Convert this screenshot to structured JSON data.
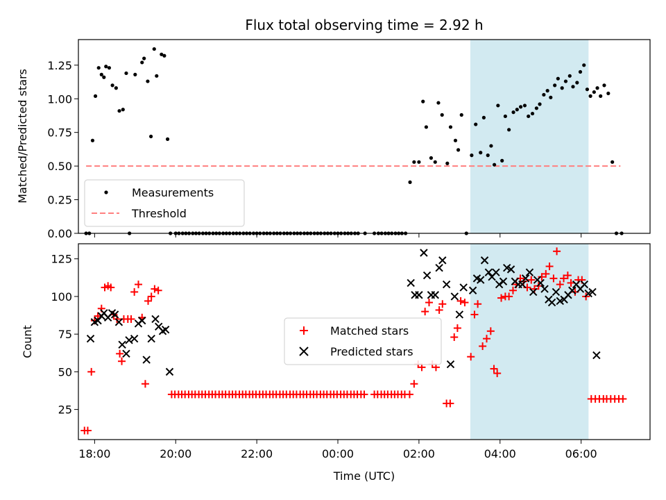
{
  "colors": {
    "measurement": "#000000",
    "threshold": "#ff7f7f",
    "matched": "#ff0000",
    "predicted": "#000000",
    "highlight": "#add8e6"
  },
  "chart_data": [
    {
      "type": "scatter",
      "title": "Flux total observing time = 2.92 h",
      "xlabel": "",
      "ylabel": "Matched/Predicted stars",
      "x_unit": "hours (UTC, 17:00 = 17, past midnight > 24)",
      "xlim": [
        "17:36",
        "07:42"
      ],
      "ylim": [
        0,
        1.44
      ],
      "yticks": [
        "0.00",
        "0.25",
        "0.50",
        "0.75",
        "1.00",
        "1.25"
      ],
      "xticks": [
        "18:00",
        "20:00",
        "22:00",
        "00:00",
        "02:00",
        "04:00",
        "06:00"
      ],
      "shaded_region": [
        "03:16",
        "06:11"
      ],
      "legend_location": "lower left",
      "series": [
        {
          "name": "Measurements",
          "marker": "dot",
          "x": [
            17.79,
            17.87,
            17.95,
            18.02,
            18.1,
            18.17,
            18.23,
            18.28,
            18.36,
            18.44,
            18.53,
            18.61,
            18.7,
            18.78,
            18.86,
            19.0,
            19.17,
            19.22,
            19.31,
            19.39,
            19.47,
            19.53,
            19.65,
            19.72,
            19.8,
            19.87,
            20.0,
            20.08,
            20.17,
            20.25,
            20.33,
            20.42,
            20.5,
            20.58,
            20.67,
            20.75,
            20.83,
            20.92,
            21.0,
            21.08,
            21.17,
            21.25,
            21.33,
            21.42,
            21.5,
            21.58,
            21.67,
            21.75,
            21.83,
            21.92,
            22.0,
            22.08,
            22.17,
            22.25,
            22.33,
            22.42,
            22.5,
            22.58,
            22.67,
            22.75,
            22.83,
            22.92,
            23.0,
            23.08,
            23.17,
            23.25,
            23.33,
            23.42,
            23.5,
            23.58,
            23.67,
            23.75,
            23.83,
            23.92,
            24.0,
            24.08,
            24.17,
            24.25,
            24.33,
            24.42,
            24.5,
            24.67,
            24.9,
            25.0,
            25.08,
            25.17,
            25.25,
            25.33,
            25.42,
            25.5,
            25.58,
            25.67,
            25.78,
            25.88,
            26.0,
            26.1,
            26.18,
            26.3,
            26.4,
            26.48,
            26.57,
            26.7,
            26.78,
            26.9,
            26.97,
            27.05,
            27.17,
            27.3,
            27.4,
            27.52,
            27.6,
            27.7,
            27.78,
            27.86,
            27.95,
            28.05,
            28.13,
            28.22,
            28.33,
            28.42,
            28.51,
            28.61,
            28.7,
            28.8,
            28.9,
            28.98,
            29.08,
            29.17,
            29.25,
            29.35,
            29.43,
            29.53,
            29.62,
            29.72,
            29.8,
            29.9,
            29.98,
            30.07,
            30.15,
            30.23,
            30.32,
            30.4,
            30.48,
            30.57,
            30.67,
            30.77,
            30.87,
            31.0
          ],
          "y": [
            0,
            0,
            0.69,
            1.02,
            1.23,
            1.18,
            1.16,
            1.24,
            1.23,
            1.1,
            1.08,
            0.91,
            0.92,
            1.19,
            0,
            1.18,
            1.27,
            1.3,
            1.13,
            0.72,
            1.37,
            1.17,
            1.33,
            1.32,
            0.7,
            0,
            0,
            0,
            0,
            0,
            0,
            0,
            0,
            0,
            0,
            0,
            0,
            0,
            0,
            0,
            0,
            0,
            0,
            0,
            0,
            0,
            0,
            0,
            0,
            0,
            0,
            0,
            0,
            0,
            0,
            0,
            0,
            0,
            0,
            0,
            0,
            0,
            0,
            0,
            0,
            0,
            0,
            0,
            0,
            0,
            0,
            0,
            0,
            0,
            0,
            0,
            0,
            0,
            0,
            0,
            0,
            0,
            0,
            0,
            0,
            0,
            0,
            0,
            0,
            0,
            0,
            0,
            0.38,
            0.53,
            0.53,
            0.98,
            0.79,
            0.56,
            0.53,
            0.97,
            0.88,
            0.52,
            0.79,
            0.69,
            0.62,
            0.88,
            0,
            0.58,
            0.81,
            0.6,
            0.86,
            0.58,
            0.65,
            0.51,
            0.95,
            0.54,
            0.87,
            0.77,
            0.9,
            0.92,
            0.94,
            0.95,
            0.87,
            0.89,
            0.93,
            0.96,
            1.03,
            1.06,
            1.01,
            1.1,
            1.15,
            1.08,
            1.13,
            1.17,
            1.09,
            1.12,
            1.2,
            1.25,
            1.07,
            1.02,
            1.05,
            1.08,
            1.02,
            1.1,
            1.04,
            0.53,
            0,
            0
          ]
        },
        {
          "name": "Threshold",
          "style": "dashed",
          "x": [
            17.79,
            30.97
          ],
          "y": [
            0.5,
            0.5
          ]
        }
      ]
    },
    {
      "type": "scatter",
      "title": "",
      "xlabel": "Time (UTC)",
      "ylabel": "Count",
      "xlim": [
        "17:36",
        "07:42"
      ],
      "ylim": [
        5,
        135
      ],
      "yticks": [
        "25",
        "50",
        "75",
        "100",
        "125"
      ],
      "xticks": [
        "18:00",
        "20:00",
        "22:00",
        "00:00",
        "02:00",
        "04:00",
        "06:00"
      ],
      "shaded_region": [
        "03:16",
        "06:11"
      ],
      "legend_location": "center",
      "series": [
        {
          "name": "Matched stars",
          "marker": "plus",
          "x": [
            17.75,
            17.83,
            17.92,
            18.0,
            18.08,
            18.17,
            18.25,
            18.33,
            18.4,
            18.47,
            18.55,
            18.62,
            18.67,
            18.72,
            18.82,
            18.9,
            18.98,
            19.08,
            19.17,
            19.25,
            19.32,
            19.4,
            19.48,
            19.57,
            19.65,
            19.73,
            19.81,
            19.9,
            19.98,
            20.07,
            20.15,
            20.23,
            20.32,
            20.4,
            20.48,
            20.57,
            20.65,
            20.73,
            20.82,
            20.9,
            20.98,
            21.07,
            21.15,
            21.23,
            21.32,
            21.4,
            21.48,
            21.57,
            21.65,
            21.73,
            21.82,
            21.9,
            21.98,
            22.07,
            22.15,
            22.23,
            22.32,
            22.4,
            22.48,
            22.57,
            22.65,
            22.73,
            22.82,
            22.9,
            22.98,
            23.07,
            23.15,
            23.23,
            23.32,
            23.4,
            23.48,
            23.57,
            23.65,
            23.73,
            23.82,
            23.9,
            23.98,
            24.07,
            24.15,
            24.23,
            24.32,
            24.4,
            24.48,
            24.57,
            24.65,
            24.9,
            24.98,
            25.07,
            25.15,
            25.23,
            25.32,
            25.4,
            25.48,
            25.57,
            25.65,
            25.77,
            25.88,
            25.98,
            26.07,
            26.15,
            26.25,
            26.33,
            26.42,
            26.5,
            26.58,
            26.68,
            26.77,
            26.87,
            26.95,
            27.03,
            27.13,
            27.28,
            27.37,
            27.45,
            27.57,
            27.67,
            27.77,
            27.85,
            27.93,
            28.03,
            28.13,
            28.22,
            28.32,
            28.4,
            28.5,
            28.58,
            28.67,
            28.77,
            28.85,
            28.95,
            29.03,
            29.13,
            29.22,
            29.32,
            29.4,
            29.48,
            29.57,
            29.67,
            29.75,
            29.85,
            29.93,
            30.02,
            30.12,
            30.25,
            30.35,
            30.45,
            30.55,
            30.63,
            30.73,
            30.83,
            30.93,
            31.03
          ],
          "y": [
            11,
            11,
            50,
            84,
            87,
            92,
            106,
            107,
            106,
            88,
            85,
            62,
            57,
            85,
            85,
            85,
            103,
            108,
            86,
            42,
            97,
            100,
            105,
            104,
            null,
            null,
            null,
            35,
            35,
            35,
            35,
            35,
            35,
            35,
            35,
            35,
            35,
            35,
            35,
            35,
            35,
            35,
            35,
            35,
            35,
            35,
            35,
            35,
            35,
            35,
            35,
            35,
            35,
            35,
            35,
            35,
            35,
            35,
            35,
            35,
            35,
            35,
            35,
            35,
            35,
            35,
            35,
            35,
            35,
            35,
            35,
            35,
            35,
            35,
            35,
            35,
            35,
            35,
            35,
            35,
            35,
            35,
            35,
            35,
            35,
            35,
            35,
            35,
            35,
            35,
            35,
            35,
            35,
            35,
            35,
            35,
            42,
            55,
            53,
            90,
            96,
            55,
            53,
            91,
            95,
            29,
            29,
            73,
            79,
            97,
            96,
            60,
            88,
            95,
            67,
            72,
            77,
            52,
            49,
            99,
            100,
            100,
            104,
            108,
            112,
            110,
            106,
            111,
            105,
            107,
            113,
            115,
            120,
            112,
            130,
            108,
            112,
            114,
            109,
            103,
            111,
            111,
            100,
            32,
            32,
            32,
            32,
            32,
            32,
            32,
            32,
            32
          ]
        },
        {
          "name": "Predicted stars",
          "marker": "x",
          "x": [
            17.9,
            18.0,
            18.08,
            18.17,
            18.23,
            18.33,
            18.43,
            18.5,
            18.6,
            18.68,
            18.78,
            18.85,
            18.98,
            19.08,
            19.17,
            19.28,
            19.4,
            19.5,
            19.58,
            19.68,
            19.75,
            19.85,
            25.8,
            25.9,
            26.0,
            26.12,
            26.2,
            26.3,
            26.4,
            26.5,
            26.58,
            26.68,
            26.78,
            26.88,
            27.0,
            27.1,
            27.33,
            27.43,
            27.52,
            27.62,
            27.72,
            27.8,
            27.9,
            27.98,
            28.08,
            28.17,
            28.27,
            28.37,
            28.45,
            28.55,
            28.63,
            28.73,
            28.82,
            28.92,
            29.0,
            29.1,
            29.2,
            29.28,
            29.38,
            29.48,
            29.58,
            29.68,
            29.78,
            29.88,
            29.98,
            30.08,
            30.18,
            30.28,
            30.38
          ],
          "y": [
            72,
            83,
            84,
            87,
            89,
            86,
            89,
            88,
            83,
            68,
            62,
            71,
            72,
            82,
            84,
            58,
            72,
            85,
            80,
            77,
            78,
            50,
            109,
            101,
            101,
            129,
            114,
            101,
            101,
            119,
            124,
            108,
            55,
            100,
            88,
            106,
            104,
            112,
            111,
            124,
            116,
            113,
            116,
            108,
            110,
            119,
            118,
            110,
            108,
            108,
            112,
            116,
            103,
            111,
            109,
            105,
            98,
            96,
            103,
            97,
            98,
            101,
            104,
            108,
            105,
            108,
            102,
            103,
            61
          ]
        }
      ]
    }
  ]
}
